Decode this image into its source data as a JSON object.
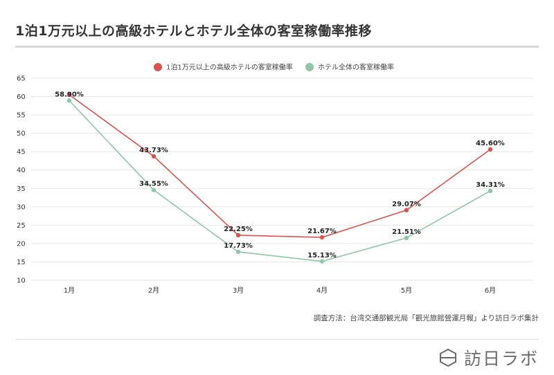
{
  "header": {
    "title": "1泊1万元以上の高級ホテルとホテル全体の客室稼働率推移"
  },
  "footer": {
    "source": "調査方法：台湾交通部観光局「觀光旅館營運月報」より訪日ラボ集計",
    "brand": "訪日ラボ"
  },
  "colors": {
    "series1": "#d9534f",
    "series2": "#8ec6a8",
    "grid": "#e6e6e6"
  },
  "chart_data": {
    "type": "line",
    "title": "1泊1万元以上の高級ホテルとホテル全体の客室稼働率推移",
    "categories": [
      "1月",
      "2月",
      "3月",
      "4月",
      "5月",
      "6月"
    ],
    "ylim": [
      10,
      65
    ],
    "yticks": [
      10,
      15,
      20,
      25,
      30,
      35,
      40,
      45,
      50,
      55,
      60,
      65
    ],
    "grid": true,
    "legend_position": "top-center",
    "series": [
      {
        "name": "1泊1万元以上の高級ホテルの客室稼働率",
        "values": [
          60.5,
          43.73,
          22.25,
          21.67,
          29.07,
          45.6
        ],
        "labels": [
          "",
          "43.73%",
          "22.25%",
          "21.67%",
          "29.07%",
          "45.60%"
        ]
      },
      {
        "name": "ホテル全体の客室稼働率",
        "values": [
          58.9,
          34.55,
          17.73,
          15.13,
          21.51,
          34.31
        ],
        "labels": [
          "58.90%",
          "34.55%",
          "17.73%",
          "15.13%",
          "21.51%",
          "34.31%"
        ]
      }
    ]
  }
}
